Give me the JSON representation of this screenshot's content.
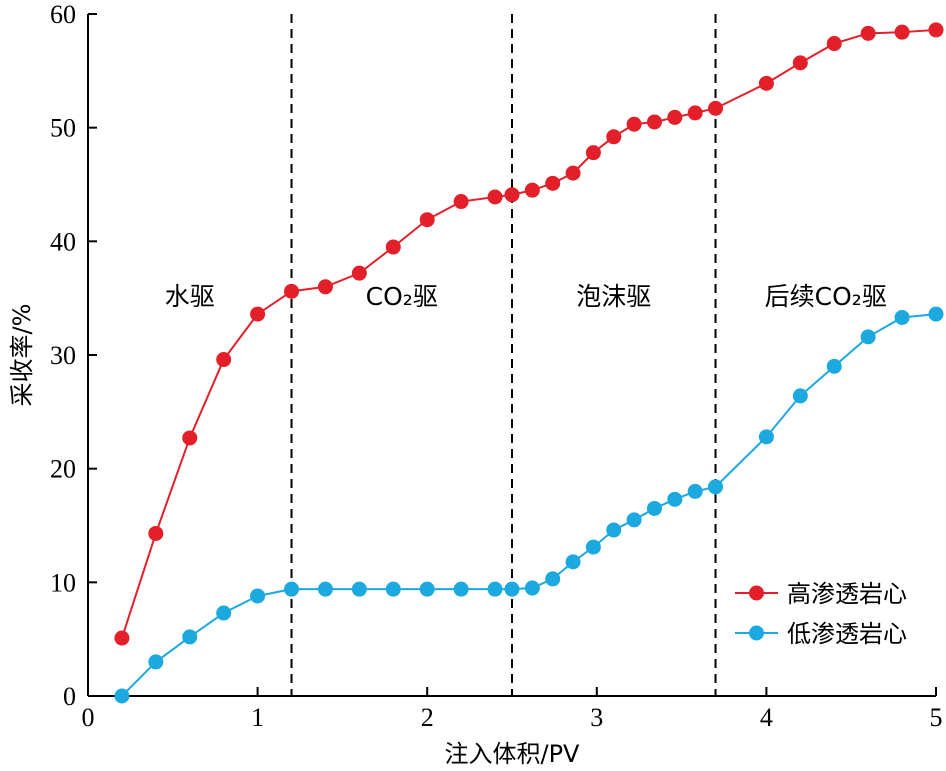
{
  "chart_data": {
    "type": "line",
    "xlabel": "注入体积/PV",
    "ylabel": "采收率/%",
    "xlim": [
      0,
      5
    ],
    "ylim": [
      0,
      60
    ],
    "xticks": [
      "0",
      "1",
      "2",
      "3",
      "4",
      "5"
    ],
    "yticks": [
      "0",
      "10",
      "20",
      "30",
      "40",
      "50",
      "60"
    ],
    "grid": false,
    "legend_position": "bottom-right",
    "phase_boundaries": [
      1.2,
      2.5,
      3.7
    ],
    "phases": [
      {
        "label": "水驱",
        "x": 0.6
      },
      {
        "label": "CO₂驱",
        "x": 1.85
      },
      {
        "label": "泡沫驱",
        "x": 3.1
      },
      {
        "label": "后续CO₂驱",
        "x": 4.35
      }
    ],
    "series": [
      {
        "name": "高渗透岩心",
        "color": "#e3202a",
        "x": [
          0.2,
          0.4,
          0.6,
          0.8,
          1.0,
          1.2,
          1.4,
          1.6,
          1.8,
          2.0,
          2.2,
          2.4,
          2.5,
          2.62,
          2.74,
          2.86,
          2.98,
          3.1,
          3.22,
          3.34,
          3.46,
          3.58,
          3.7,
          4.0,
          4.2,
          4.4,
          4.6,
          4.8,
          5.0
        ],
        "values": [
          5.1,
          14.3,
          22.7,
          29.6,
          33.6,
          35.6,
          36.0,
          37.2,
          39.5,
          41.9,
          43.5,
          43.9,
          44.1,
          44.5,
          45.1,
          46.0,
          47.8,
          49.2,
          50.3,
          50.5,
          50.9,
          51.3,
          51.7,
          53.9,
          55.7,
          57.4,
          58.3,
          58.4,
          58.6
        ]
      },
      {
        "name": "低渗透岩心",
        "color": "#1ba9df",
        "x": [
          0.2,
          0.4,
          0.6,
          0.8,
          1.0,
          1.2,
          1.4,
          1.6,
          1.8,
          2.0,
          2.2,
          2.4,
          2.5,
          2.62,
          2.74,
          2.86,
          2.98,
          3.1,
          3.22,
          3.34,
          3.46,
          3.58,
          3.7,
          4.0,
          4.2,
          4.4,
          4.6,
          4.8,
          5.0
        ],
        "values": [
          0.0,
          3.0,
          5.2,
          7.3,
          8.8,
          9.4,
          9.4,
          9.4,
          9.4,
          9.4,
          9.4,
          9.4,
          9.4,
          9.5,
          10.3,
          11.8,
          13.1,
          14.6,
          15.5,
          16.5,
          17.3,
          18.0,
          18.4,
          22.8,
          26.4,
          29.0,
          31.6,
          33.3,
          33.6
        ]
      }
    ]
  }
}
